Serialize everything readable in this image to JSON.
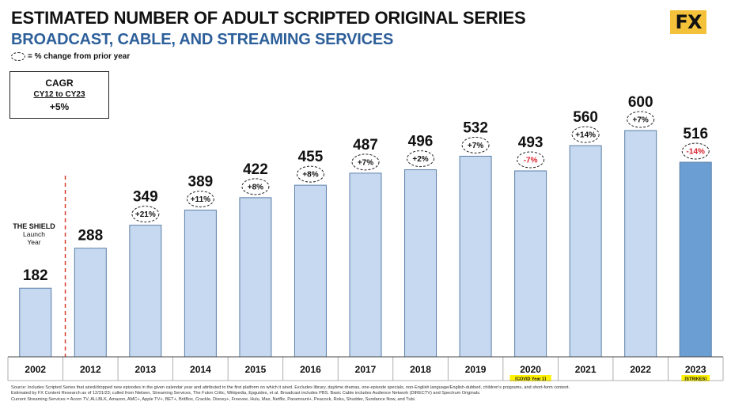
{
  "header": {
    "title": "ESTIMATED NUMBER OF ADULT SCRIPTED ORIGINAL SERIES",
    "subtitle": "BROADCAST, CABLE, AND STREAMING SERVICES",
    "legend_note": "= % change from prior year",
    "logo_text": "FX"
  },
  "cagr": {
    "title": "CAGR",
    "range": "CY12 to CY23",
    "value": "+5%"
  },
  "shield_note": {
    "title": "THE SHIELD",
    "line1": "Launch",
    "line2": "Year"
  },
  "source_lines": [
    "Source:  Includes Scripted Series that aired/dropped new episodes in the given calendar year and attributed to the first platform on which it aired. Excludes library, daytime dramas, one-episode specials, non-English language/English-dubbed, children's programs, and short-form content.",
    "Estimated by FX Content Research as of 12/31/23; culled from Nielsen, Streaming Services, The Futon Critic, Wikipedia, Epguides, et al.  Broadcast includes PBS.  Basic Cable includes Audience Network (DIRECTV) and Spectrum Originals.",
    "Current Streaming Services = Acorn TV, ALLBLK, Amazon, AMC+, Apple TV+, BET+, BritBox, Crackle, Disney+, Freevee, Hulu, Max, Netflix, Paramount+, Peacock, Roku, Shudder, Sundance Now, and Tubi."
  ],
  "colors": {
    "bar": "#c6d9f0",
    "bar_highlight": "#6b9fd4",
    "bar_stroke": "#5b7fa8",
    "negative": "#d9202a",
    "note_bg": "#fff200",
    "divider": "#d93b2b"
  },
  "chart_data": {
    "type": "bar",
    "title": "ESTIMATED NUMBER OF ADULT SCRIPTED ORIGINAL SERIES",
    "subtitle": "BROADCAST, CABLE, AND STREAMING SERVICES",
    "categories": [
      "2002",
      "2012",
      "2013",
      "2014",
      "2015",
      "2016",
      "2017",
      "2018",
      "2019",
      "2020",
      "2021",
      "2022",
      "2023"
    ],
    "values": [
      182,
      288,
      349,
      389,
      422,
      455,
      487,
      496,
      532,
      493,
      560,
      600,
      516
    ],
    "pct_change": [
      "",
      "",
      "+21%",
      "+11%",
      "+8%",
      "+8%",
      "+7%",
      "+2%",
      "+7%",
      "-7%",
      "+14%",
      "+7%",
      "-14%"
    ],
    "category_notes": [
      "",
      "",
      "",
      "",
      "",
      "",
      "",
      "",
      "",
      "[COVID Year 1]",
      "",
      "",
      "[STRIKES]"
    ],
    "highlight_index": 12,
    "ylim": [
      0,
      650
    ],
    "grid": false,
    "xlabel": "",
    "ylabel": ""
  }
}
